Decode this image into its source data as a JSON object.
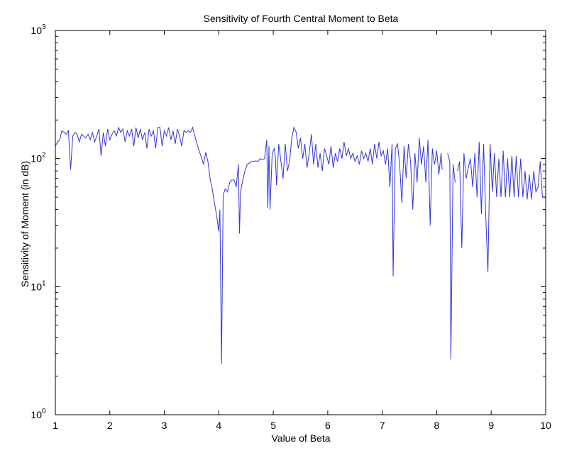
{
  "chart_data": {
    "type": "line",
    "title": "Sensitivity of Fourth Central Moment to Beta",
    "xlabel": "Value of Beta",
    "ylabel": "Sensitivity of Moment (in dB)",
    "xlim": [
      1,
      10
    ],
    "ylim": [
      1,
      1000
    ],
    "yscale": "log",
    "grid": false,
    "xticks": [
      "1",
      "2",
      "3",
      "4",
      "5",
      "6",
      "7",
      "8",
      "9",
      "10"
    ],
    "yticks": [
      {
        "base": "10",
        "exp": "0",
        "value": 1
      },
      {
        "base": "10",
        "exp": "1",
        "value": 10
      },
      {
        "base": "10",
        "exp": "2",
        "value": 100
      },
      {
        "base": "10",
        "exp": "3",
        "value": 1000
      }
    ],
    "series": [
      {
        "color": "#3333dd",
        "segments": [
          [
            [
              1.0,
              125
            ],
            [
              1.04,
              135
            ],
            [
              1.08,
              140
            ],
            [
              1.12,
              165
            ],
            [
              1.16,
              160
            ],
            [
              1.2,
              155
            ],
            [
              1.24,
              165
            ],
            [
              1.28,
              82
            ],
            [
              1.32,
              150
            ],
            [
              1.36,
              160
            ],
            [
              1.4,
              155
            ],
            [
              1.44,
              135
            ],
            [
              1.48,
              155
            ],
            [
              1.52,
              150
            ],
            [
              1.56,
              145
            ],
            [
              1.6,
              155
            ],
            [
              1.64,
              140
            ],
            [
              1.68,
              160
            ],
            [
              1.72,
              135
            ],
            [
              1.76,
              150
            ],
            [
              1.8,
              170
            ],
            [
              1.84,
              105
            ],
            [
              1.88,
              160
            ],
            [
              1.92,
              125
            ],
            [
              1.96,
              170
            ],
            [
              2.0,
              140
            ],
            [
              2.04,
              155
            ],
            [
              2.08,
              165
            ],
            [
              2.12,
              150
            ],
            [
              2.16,
              175
            ],
            [
              2.2,
              160
            ],
            [
              2.24,
              170
            ],
            [
              2.28,
              135
            ],
            [
              2.32,
              165
            ],
            [
              2.36,
              150
            ],
            [
              2.4,
              170
            ],
            [
              2.44,
              125
            ],
            [
              2.48,
              175
            ],
            [
              2.52,
              145
            ],
            [
              2.56,
              170
            ],
            [
              2.6,
              140
            ],
            [
              2.64,
              160
            ],
            [
              2.68,
              120
            ],
            [
              2.72,
              170
            ],
            [
              2.76,
              150
            ],
            [
              2.8,
              165
            ],
            [
              2.84,
              120
            ],
            [
              2.88,
              175
            ],
            [
              2.92,
              175
            ],
            [
              2.96,
              125
            ],
            [
              3.0,
              165
            ],
            [
              3.04,
              150
            ],
            [
              3.08,
              175
            ],
            [
              3.12,
              140
            ],
            [
              3.16,
              165
            ],
            [
              3.2,
              130
            ],
            [
              3.24,
              170
            ],
            [
              3.28,
              150
            ],
            [
              3.32,
              125
            ],
            [
              3.36,
              165
            ],
            [
              3.4,
              160
            ],
            [
              3.44,
              165
            ],
            [
              3.48,
              160
            ],
            [
              3.52,
              175
            ],
            [
              3.56,
              150
            ],
            [
              3.6,
              130
            ],
            [
              3.64,
              115
            ],
            [
              3.68,
              102
            ],
            [
              3.72,
              90
            ],
            [
              3.76,
              112
            ],
            [
              3.8,
              95
            ],
            [
              3.84,
              70
            ],
            [
              3.88,
              58
            ],
            [
              3.92,
              45
            ],
            [
              3.96,
              36
            ],
            [
              4.0,
              27
            ],
            [
              4.02,
              40
            ],
            [
              4.05,
              2.5
            ],
            [
              4.08,
              52
            ],
            [
              4.12,
              58
            ],
            [
              4.16,
              55
            ],
            [
              4.2,
              65
            ],
            [
              4.24,
              68
            ],
            [
              4.28,
              68
            ],
            [
              4.32,
              60
            ],
            [
              4.36,
              90
            ],
            [
              4.38,
              26
            ],
            [
              4.4,
              55
            ],
            [
              4.44,
              68
            ],
            [
              4.48,
              80
            ],
            [
              4.52,
              90
            ],
            [
              4.56,
              92
            ],
            [
              4.6,
              95
            ],
            [
              4.64,
              95
            ],
            [
              4.68,
              96
            ],
            [
              4.72,
              95
            ],
            [
              4.76,
              100
            ],
            [
              4.8,
              98
            ],
            [
              4.84,
              100
            ],
            [
              4.88,
              140
            ],
            [
              4.9,
              41
            ],
            [
              4.92,
              125
            ],
            [
              4.94,
              40
            ],
            [
              4.98,
              110
            ],
            [
              5.02,
              120
            ],
            [
              5.04,
              100
            ],
            [
              5.06,
              62
            ],
            [
              5.1,
              130
            ],
            [
              5.14,
              95
            ],
            [
              5.18,
              70
            ],
            [
              5.22,
              130
            ],
            [
              5.26,
              80
            ],
            [
              5.3,
              95
            ],
            [
              5.34,
              145
            ],
            [
              5.38,
              175
            ],
            [
              5.42,
              160
            ],
            [
              5.46,
              120
            ],
            [
              5.5,
              145
            ],
            [
              5.54,
              100
            ],
            [
              5.58,
              130
            ],
            [
              5.62,
              85
            ],
            [
              5.66,
              110
            ],
            [
              5.7,
              155
            ],
            [
              5.74,
              90
            ],
            [
              5.78,
              130
            ],
            [
              5.82,
              85
            ],
            [
              5.86,
              110
            ],
            [
              5.9,
              80
            ],
            [
              5.94,
              120
            ],
            [
              5.98,
              105
            ],
            [
              6.02,
              90
            ],
            [
              6.06,
              125
            ],
            [
              6.1,
              85
            ],
            [
              6.14,
              110
            ],
            [
              6.18,
              95
            ],
            [
              6.22,
              120
            ],
            [
              6.26,
              100
            ],
            [
              6.3,
              135
            ],
            [
              6.34,
              105
            ],
            [
              6.38,
              120
            ],
            [
              6.42,
              100
            ],
            [
              6.46,
              110
            ],
            [
              6.5,
              95
            ],
            [
              6.54,
              105
            ],
            [
              6.58,
              90
            ],
            [
              6.62,
              115
            ],
            [
              6.66,
              100
            ],
            [
              6.7,
              110
            ],
            [
              6.74,
              95
            ],
            [
              6.78,
              120
            ],
            [
              6.82,
              90
            ],
            [
              6.86,
              130
            ],
            [
              6.9,
              100
            ],
            [
              6.94,
              135
            ],
            [
              6.98,
              105
            ],
            [
              7.02,
              115
            ],
            [
              7.06,
              90
            ],
            [
              7.1,
              120
            ],
            [
              7.14,
              60
            ],
            [
              7.18,
              130
            ],
            [
              7.2,
              12
            ],
            [
              7.24,
              120
            ],
            [
              7.28,
              130
            ],
            [
              7.32,
              90
            ],
            [
              7.36,
              45
            ],
            [
              7.4,
              125
            ],
            [
              7.44,
              70
            ],
            [
              7.48,
              130
            ],
            [
              7.52,
              95
            ],
            [
              7.56,
              40
            ],
            [
              7.6,
              110
            ],
            [
              7.64,
              65
            ],
            [
              7.68,
              145
            ],
            [
              7.72,
              90
            ],
            [
              7.76,
              125
            ],
            [
              7.8,
              65
            ],
            [
              7.84,
              140
            ],
            [
              7.88,
              30
            ],
            [
              7.92,
              120
            ],
            [
              7.96,
              90
            ],
            [
              8.0,
              115
            ],
            [
              8.04,
              75
            ],
            [
              8.08,
              110
            ],
            [
              8.1,
              82
            ]
          ],
          [
            [
              8.2,
              110
            ],
            [
              8.24,
              95
            ],
            [
              8.26,
              2.7
            ],
            [
              8.3,
              90
            ],
            [
              8.34,
              65
            ]
          ],
          [
            [
              8.38,
              80
            ],
            [
              8.42,
              95
            ],
            [
              8.46,
              20
            ],
            [
              8.5,
              110
            ],
            [
              8.54,
              70
            ],
            [
              8.58,
              85
            ],
            [
              8.62,
              100
            ],
            [
              8.66,
              60
            ],
            [
              8.7,
              110
            ],
            [
              8.74,
              50
            ],
            [
              8.78,
              135
            ],
            [
              8.82,
              37
            ],
            [
              8.86,
              130
            ],
            [
              8.9,
              36
            ],
            [
              8.94,
              13
            ],
            [
              8.98,
              130
            ],
            [
              9.02,
              55
            ],
            [
              9.06,
              110
            ],
            [
              9.1,
              50
            ],
            [
              9.14,
              100
            ],
            [
              9.18,
              50
            ],
            [
              9.22,
              115
            ],
            [
              9.26,
              50
            ],
            [
              9.3,
              100
            ],
            [
              9.34,
              50
            ],
            [
              9.38,
              105
            ],
            [
              9.42,
              50
            ],
            [
              9.46,
              105
            ],
            [
              9.5,
              50
            ],
            [
              9.54,
              100
            ],
            [
              9.58,
              50
            ],
            [
              9.62,
              80
            ],
            [
              9.66,
              48
            ],
            [
              9.7,
              75
            ],
            [
              9.74,
              48
            ],
            [
              9.78,
              80
            ],
            [
              9.82,
              55
            ],
            [
              9.86,
              60
            ],
            [
              9.9,
              95
            ],
            [
              9.94,
              50
            ],
            [
              9.98,
              50
            ],
            [
              10.0,
              50
            ]
          ]
        ]
      }
    ]
  }
}
